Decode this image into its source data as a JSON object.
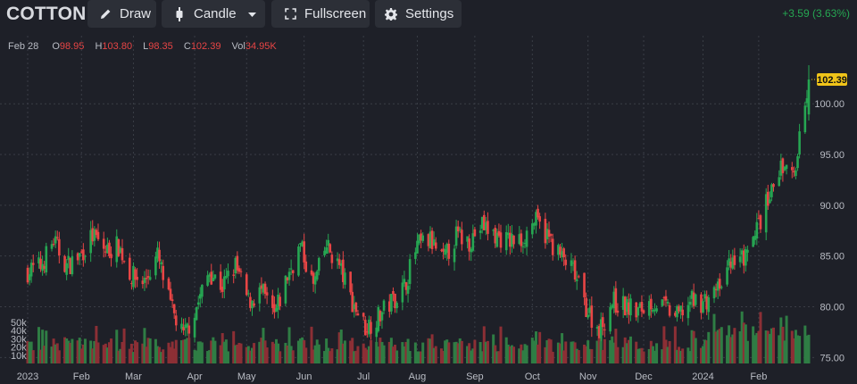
{
  "toolbar": {
    "symbol": "COTTON",
    "draw_label": "Draw",
    "candle_label": "Candle",
    "fullscreen_label": "Fullscreen",
    "settings_label": "Settings",
    "change": "+3.59 (3.63%)",
    "icons": {
      "draw": "pencil-icon",
      "candle": "candlestick-icon",
      "candle_menu": "caret-down-icon",
      "fullscreen": "fullscreen-icon",
      "settings": "gear-icon"
    }
  },
  "legend": {
    "date": "Feb 28",
    "open_label": "O",
    "open": "98.95",
    "high_label": "H",
    "high": "103.80",
    "low_label": "L",
    "low": "98.35",
    "close_label": "C",
    "close": "102.39",
    "volume_label": "Vol",
    "volume": "34.95K"
  },
  "colors": {
    "background": "#1e2028",
    "up": "#26a652",
    "down": "#e84545",
    "last_price_tag": "#f0c419"
  },
  "chart_data": {
    "type": "candlestick",
    "last_price_label": "102.39",
    "price_ticks": [
      "100.00",
      "95.00",
      "90.00",
      "85.00",
      "80.00",
      "75.00"
    ],
    "price_tick_values": [
      100,
      95,
      90,
      85,
      80,
      75
    ],
    "ylim": [
      74.5,
      106
    ],
    "volume_ticks": [
      "50k",
      "40k",
      "30k",
      "20k",
      "10k"
    ],
    "volume_tick_values": [
      50000,
      40000,
      30000,
      20000,
      10000
    ],
    "volume_max": 62000,
    "x_ticks": [
      "2023",
      "Feb",
      "Mar",
      "Apr",
      "May",
      "Jun",
      "Jul",
      "Aug",
      "Sep",
      "Oct",
      "Nov",
      "Dec",
      "2024",
      "Feb"
    ],
    "x_tick_dates": [
      "2023-01-03",
      "2023-02-01",
      "2023-03-01",
      "2023-04-03",
      "2023-05-01",
      "2023-06-01",
      "2023-07-03",
      "2023-08-01",
      "2023-09-01",
      "2023-10-02",
      "2023-11-01",
      "2023-12-01",
      "2024-01-02",
      "2024-02-01"
    ],
    "closes_weekly": [
      [
        "2023-01-03",
        83.5
      ],
      [
        "2023-01-10",
        84.0
      ],
      [
        "2023-01-17",
        86.5
      ],
      [
        "2023-01-24",
        84.0
      ],
      [
        "2023-01-31",
        85.0
      ],
      [
        "2023-02-07",
        87.0
      ],
      [
        "2023-02-14",
        85.5
      ],
      [
        "2023-02-21",
        86.0
      ],
      [
        "2023-02-28",
        83.0
      ],
      [
        "2023-03-07",
        82.5
      ],
      [
        "2023-03-14",
        85.0
      ],
      [
        "2023-03-21",
        80.0
      ],
      [
        "2023-03-28",
        77.0
      ],
      [
        "2023-04-04",
        80.0
      ],
      [
        "2023-04-11",
        83.5
      ],
      [
        "2023-04-18",
        82.0
      ],
      [
        "2023-04-25",
        84.0
      ],
      [
        "2023-05-02",
        80.5
      ],
      [
        "2023-05-09",
        81.5
      ],
      [
        "2023-05-16",
        79.0
      ],
      [
        "2023-05-23",
        83.0
      ],
      [
        "2023-05-30",
        86.0
      ],
      [
        "2023-06-06",
        82.0
      ],
      [
        "2023-06-13",
        86.0
      ],
      [
        "2023-06-20",
        84.0
      ],
      [
        "2023-06-27",
        80.5
      ],
      [
        "2023-07-04",
        78.0
      ],
      [
        "2023-07-11",
        79.0
      ],
      [
        "2023-07-18",
        80.5
      ],
      [
        "2023-07-25",
        82.0
      ],
      [
        "2023-08-01",
        86.0
      ],
      [
        "2023-08-08",
        86.5
      ],
      [
        "2023-08-15",
        84.5
      ],
      [
        "2023-08-22",
        87.0
      ],
      [
        "2023-08-29",
        86.5
      ],
      [
        "2023-09-05",
        88.0
      ],
      [
        "2023-09-12",
        87.0
      ],
      [
        "2023-09-19",
        86.5
      ],
      [
        "2023-09-26",
        86.5
      ],
      [
        "2023-10-03",
        88.5
      ],
      [
        "2023-10-10",
        87.0
      ],
      [
        "2023-10-17",
        85.0
      ],
      [
        "2023-10-24",
        83.5
      ],
      [
        "2023-10-31",
        80.0
      ],
      [
        "2023-11-07",
        77.5
      ],
      [
        "2023-11-14",
        80.5
      ],
      [
        "2023-11-21",
        80.0
      ],
      [
        "2023-11-28",
        79.5
      ],
      [
        "2023-12-05",
        80.5
      ],
      [
        "2023-12-12",
        80.0
      ],
      [
        "2023-12-19",
        79.0
      ],
      [
        "2023-12-26",
        80.5
      ],
      [
        "2024-01-02",
        80.5
      ],
      [
        "2024-01-09",
        81.0
      ],
      [
        "2024-01-16",
        84.0
      ],
      [
        "2024-01-23",
        84.5
      ],
      [
        "2024-01-30",
        87.0
      ],
      [
        "2024-02-06",
        91.0
      ],
      [
        "2024-02-13",
        93.5
      ],
      [
        "2024-02-20",
        93.0
      ],
      [
        "2024-02-28",
        102.39
      ]
    ]
  }
}
